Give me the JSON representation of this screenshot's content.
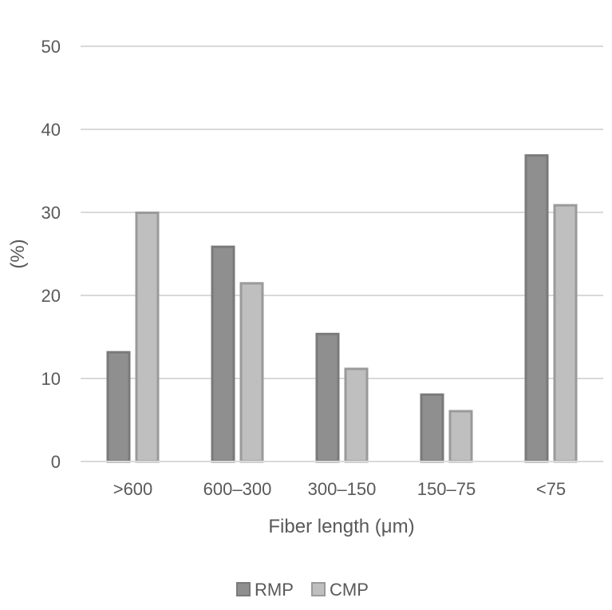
{
  "chart_data": {
    "type": "bar",
    "categories": [
      ">600",
      "600–300",
      "300–150",
      "150–75",
      "<75"
    ],
    "series": [
      {
        "name": "RMP",
        "values": [
          13.3,
          26.0,
          15.5,
          8.2,
          37.0
        ],
        "color": "#8f8f8f",
        "stroke": "#7a7a7a"
      },
      {
        "name": "CMP",
        "values": [
          30.1,
          21.6,
          11.3,
          6.2,
          31.0
        ],
        "color": "#bfbfbf",
        "stroke": "#9a9a9a"
      }
    ],
    "title": "",
    "xlabel": "Fiber length (μm)",
    "ylabel": "(%)",
    "ylim": [
      0,
      50
    ],
    "yticks": [
      0,
      10,
      20,
      30,
      40,
      50
    ],
    "grid": true,
    "legend": "bottom"
  }
}
